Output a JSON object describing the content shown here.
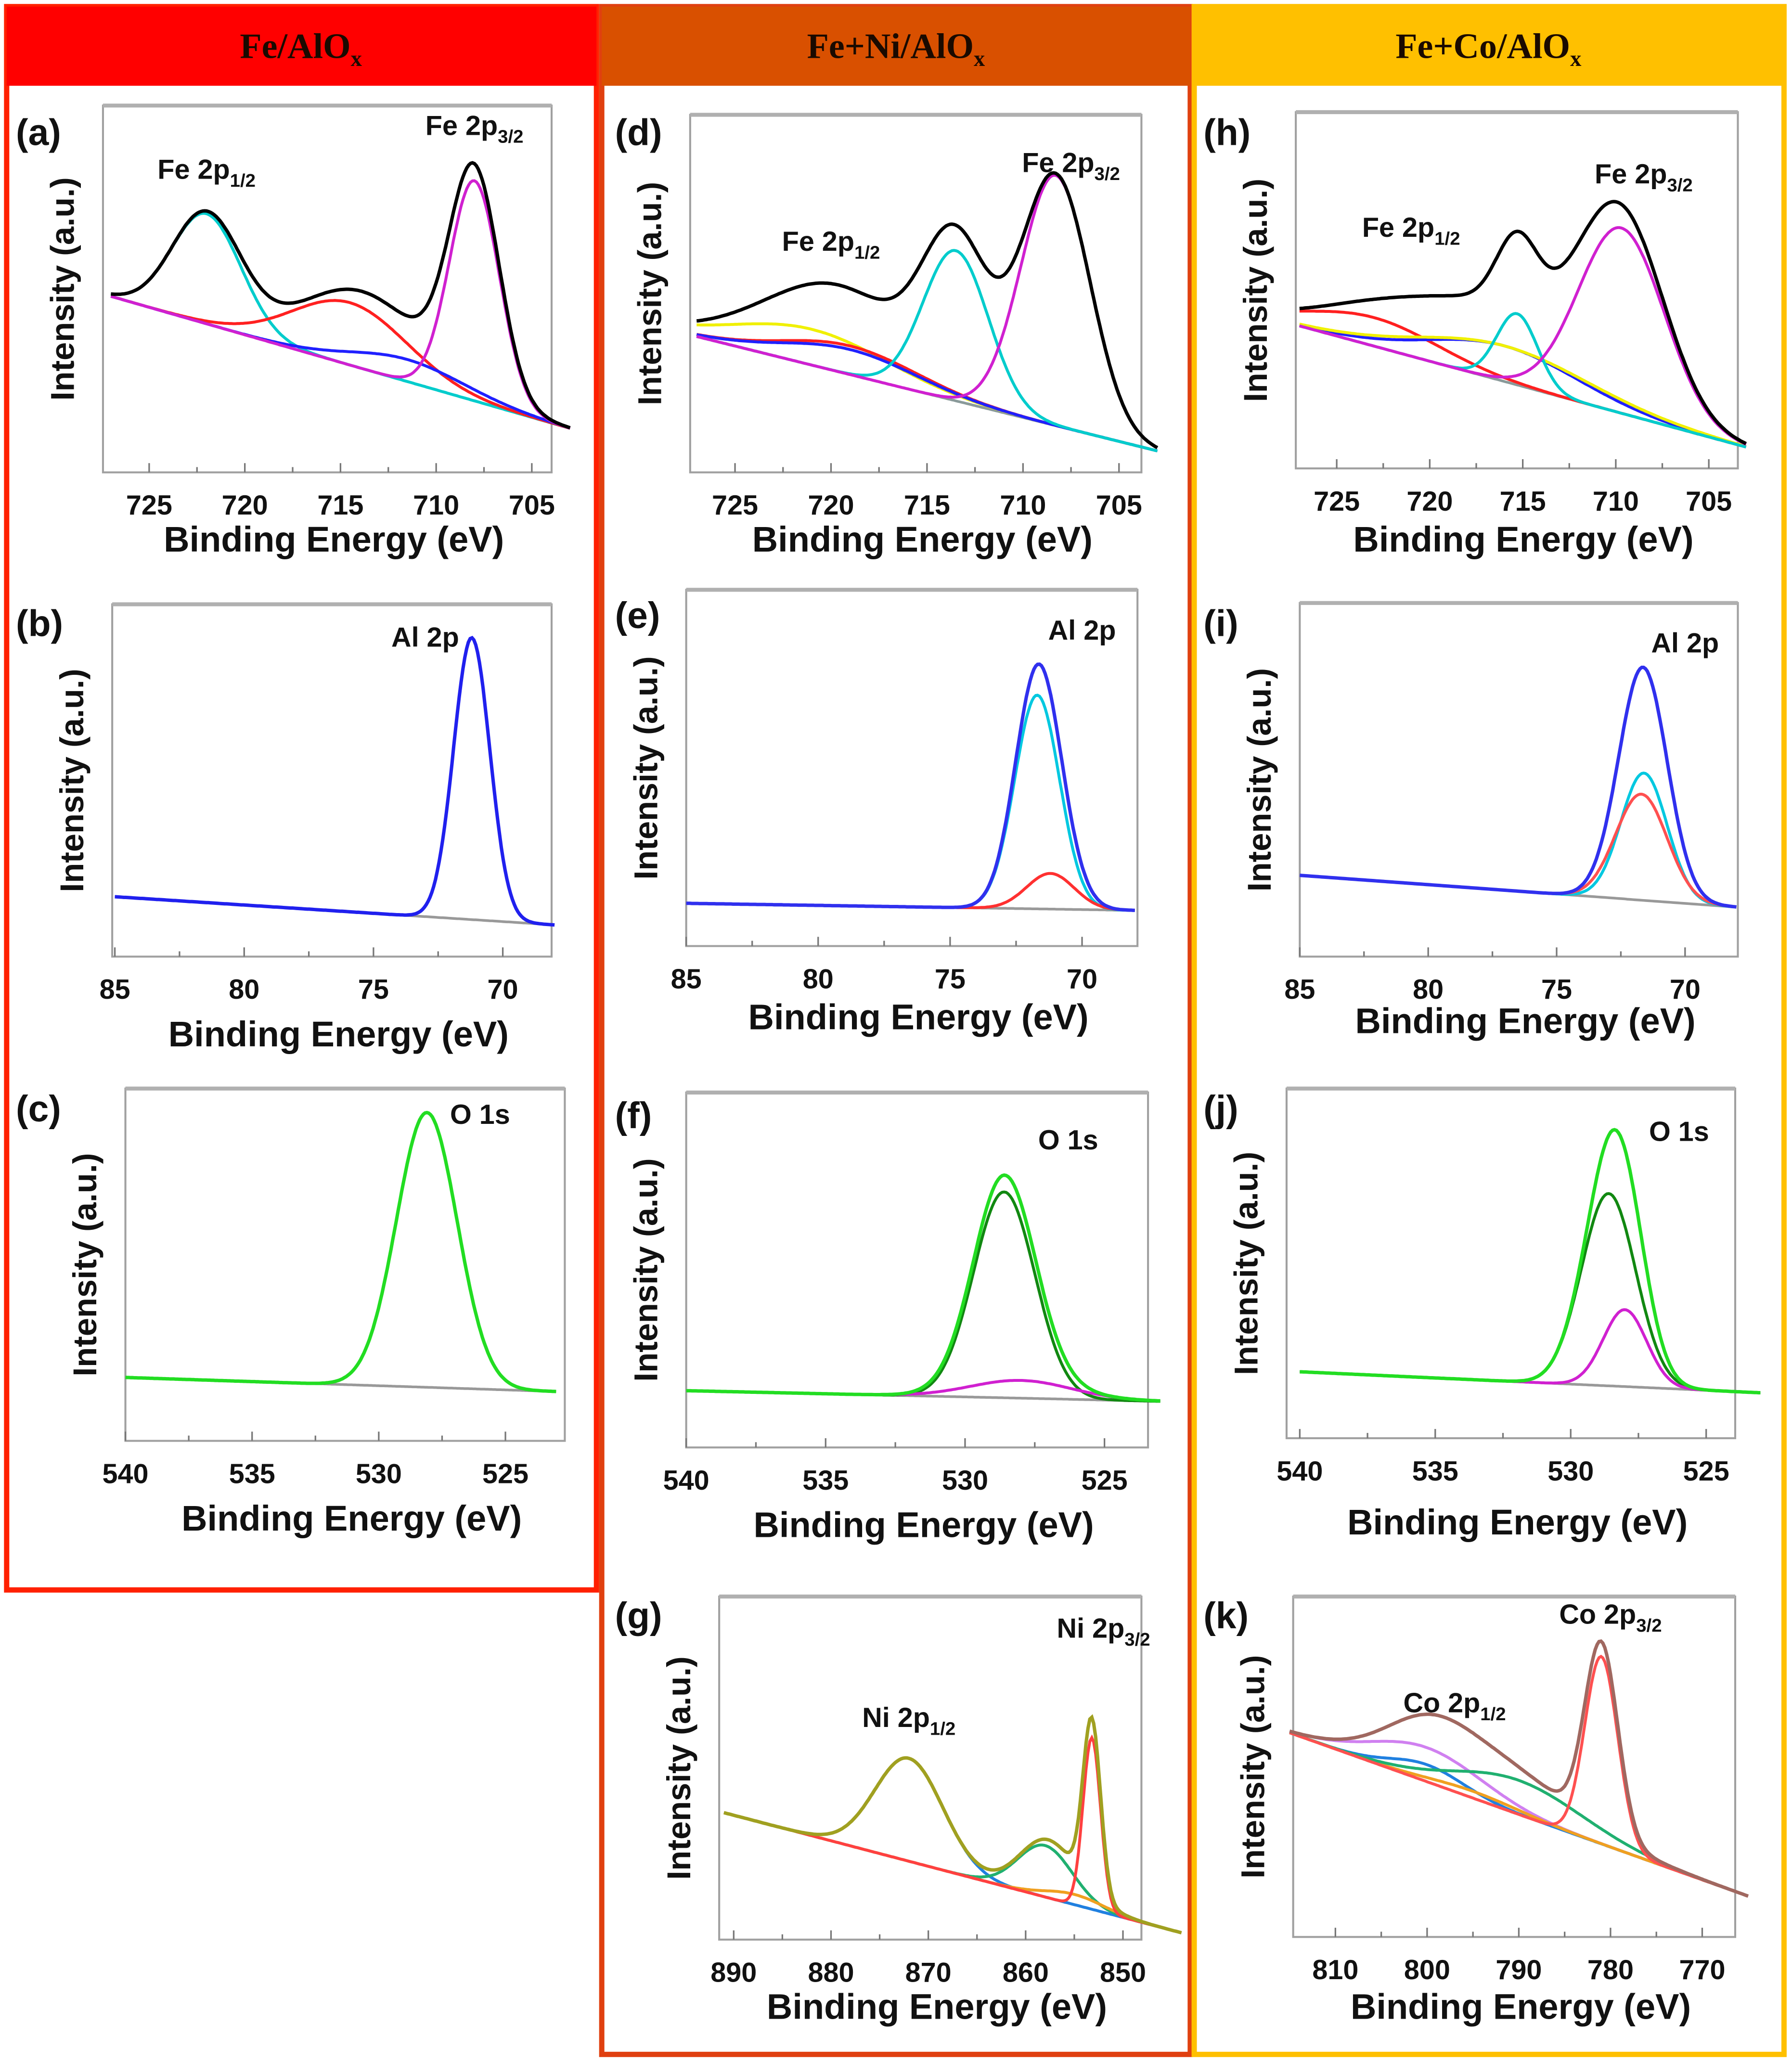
{
  "columns": [
    {
      "title": "Fe/AlO",
      "sub": "x",
      "color": "#ff0000"
    },
    {
      "title": "Fe+Ni/AlO",
      "sub": "x",
      "color": "#d95000"
    },
    {
      "title": "Fe+Co/AlO",
      "sub": "x",
      "color": "#ffc000"
    }
  ],
  "chart_data": [
    {
      "panel": "(a)",
      "type": "line",
      "xlabel": "Binding Energy (eV)",
      "ylabel": "Intensity (a.u.)",
      "xlim": [
        727,
        703
      ],
      "xticks": [
        "725",
        "720",
        "715",
        "710",
        "705"
      ],
      "baseline": [
        0.48,
        0.12
      ],
      "baseline_color": "#8a9a9a",
      "envelope_color": "#000000",
      "components": [
        {
          "color": "#00cccc",
          "center": 722,
          "height": 0.3,
          "sigma": 1.8
        },
        {
          "color": "#ff2020",
          "center": 714.5,
          "height": 0.17,
          "sigma": 3
        },
        {
          "color": "#2020ff",
          "center": 711.5,
          "height": 0.06,
          "sigma": 3
        },
        {
          "color": "#d020d0",
          "center": 708,
          "height": 0.6,
          "sigma": 1.3
        }
      ],
      "annotations": [
        {
          "text": "Fe 2p",
          "sub": "1/2",
          "x": 722,
          "y": 0.8
        },
        {
          "text": "Fe 2p",
          "sub": "3/2",
          "x": 708,
          "y": 0.92
        }
      ]
    },
    {
      "panel": "(b)",
      "type": "line",
      "xlabel": "Binding Energy (eV)",
      "ylabel": "Intensity (a.u.)",
      "xlim": [
        85,
        68
      ],
      "xticks": [
        "85",
        "80",
        "75",
        "70"
      ],
      "baseline": [
        0.17,
        0.09
      ],
      "baseline_color": "#999999",
      "envelope_color": "#2020ee",
      "components": [
        {
          "color": "#2020ee",
          "center": 71.2,
          "height": 0.8,
          "sigma": 0.7
        }
      ],
      "annotations": [
        {
          "text": "Al 2p",
          "sub": "",
          "x": 73,
          "y": 0.88
        }
      ]
    },
    {
      "panel": "(c)",
      "type": "line",
      "xlabel": "Binding Energy (eV)",
      "ylabel": "Intensity (a.u.)",
      "xlim": [
        540,
        523
      ],
      "xticks": [
        "540",
        "535",
        "530",
        "525"
      ],
      "baseline": [
        0.18,
        0.14
      ],
      "baseline_color": "#999999",
      "envelope_color": "#22dd22",
      "components": [
        {
          "color": "#22dd22",
          "center": 528.1,
          "height": 0.78,
          "sigma": 1.2
        }
      ],
      "annotations": [
        {
          "text": "O 1s",
          "sub": "",
          "x": 526,
          "y": 0.9
        }
      ]
    },
    {
      "panel": "(d)",
      "type": "line",
      "xlabel": "Binding Energy (eV)",
      "ylabel": "Intensity (a.u.)",
      "xlim": [
        727,
        703
      ],
      "xticks": [
        "725",
        "720",
        "715",
        "710",
        "705"
      ],
      "baseline": [
        0.38,
        0.06
      ],
      "baseline_color": "#8a9a9a",
      "envelope_color": "#000000",
      "components": [
        {
          "color": "#f0f000",
          "center": 721,
          "height": 0.1,
          "sigma": 4
        },
        {
          "color": "#ff2020",
          "center": 719,
          "height": 0.08,
          "sigma": 3.5
        },
        {
          "color": "#2020ff",
          "center": 719,
          "height": 0.07,
          "sigma": 3.5
        },
        {
          "color": "#00cccc",
          "center": 713.5,
          "height": 0.42,
          "sigma": 1.7
        },
        {
          "color": "#d020d0",
          "center": 708.3,
          "height": 0.7,
          "sigma": 1.8
        }
      ],
      "annotations": [
        {
          "text": "Fe 2p",
          "sub": "1/2",
          "x": 720,
          "y": 0.62
        },
        {
          "text": "Fe 2p",
          "sub": "3/2",
          "x": 707.5,
          "y": 0.84
        }
      ]
    },
    {
      "panel": "(e)",
      "type": "line",
      "xlabel": "Binding Energy (eV)",
      "ylabel": "Intensity (a.u.)",
      "xlim": [
        85,
        68
      ],
      "xticks": [
        "85",
        "80",
        "75",
        "70"
      ],
      "baseline": [
        0.12,
        0.1
      ],
      "baseline_color": "#999999",
      "envelope_color": "#3030ee",
      "components": [
        {
          "color": "#00c8e0",
          "center": 71.7,
          "height": 0.6,
          "sigma": 0.85
        },
        {
          "color": "#ff3030",
          "center": 71.2,
          "height": 0.1,
          "sigma": 0.9
        }
      ],
      "annotations": [
        {
          "text": "Al 2p",
          "sub": "",
          "x": 70,
          "y": 0.86
        }
      ]
    },
    {
      "panel": "(f)",
      "type": "line",
      "xlabel": "Binding Energy (eV)",
      "ylabel": "Intensity (a.u.)",
      "xlim": [
        540,
        523
      ],
      "xticks": [
        "540",
        "535",
        "530",
        "525"
      ],
      "baseline": [
        0.16,
        0.13
      ],
      "baseline_color": "#999999",
      "envelope_color": "#22dd22",
      "components": [
        {
          "color": "#118811",
          "center": 528.6,
          "height": 0.58,
          "sigma": 1.1
        },
        {
          "color": "#d020d0",
          "center": 528,
          "height": 0.05,
          "sigma": 1.8
        }
      ],
      "annotations": [
        {
          "text": "O 1s",
          "sub": "",
          "x": 526.3,
          "y": 0.84
        }
      ]
    },
    {
      "panel": "(g)",
      "type": "line",
      "xlabel": "Binding Energy (eV)",
      "ylabel": "Intensity (a.u.)",
      "xlim": [
        891,
        844
      ],
      "xticks": [
        "890",
        "880",
        "870",
        "860",
        "850"
      ],
      "baseline": [
        0.37,
        0.02
      ],
      "baseline_color": "#a07070",
      "envelope_color": "#a0a020",
      "components": [
        {
          "color": "#2080e0",
          "center": 872,
          "height": 0.3,
          "sigma": 3.5
        },
        {
          "color": "#20b070",
          "center": 858,
          "height": 0.15,
          "sigma": 2.8
        },
        {
          "color": "#f0a020",
          "center": 855,
          "height": 0.03,
          "sigma": 3
        },
        {
          "color": "#ff4040",
          "center": 853.2,
          "height": 0.5,
          "sigma": 0.9
        }
      ],
      "annotations": [
        {
          "text": "Ni 2p",
          "sub": "1/2",
          "x": 872,
          "y": 0.62
        },
        {
          "text": "Ni 2p",
          "sub": "3/2",
          "x": 852,
          "y": 0.88
        }
      ]
    },
    {
      "panel": "(h)",
      "type": "line",
      "xlabel": "Binding Energy (eV)",
      "ylabel": "Intensity (a.u.)",
      "xlim": [
        727,
        703
      ],
      "xticks": [
        "725",
        "720",
        "715",
        "710",
        "705"
      ],
      "baseline": [
        0.4,
        0.06
      ],
      "baseline_color": "#8a9a9a",
      "envelope_color": "#000000",
      "components": [
        {
          "color": "#ff2020",
          "center": 723,
          "height": 0.08,
          "sigma": 3.5
        },
        {
          "color": "#2020ff",
          "center": 716,
          "height": 0.1,
          "sigma": 4
        },
        {
          "color": "#f0f000",
          "center": 716,
          "height": 0.1,
          "sigma": 4.5
        },
        {
          "color": "#00cccc",
          "center": 715.3,
          "height": 0.2,
          "sigma": 1.1
        },
        {
          "color": "#d020d0",
          "center": 709.7,
          "height": 0.52,
          "sigma": 2.3
        }
      ],
      "annotations": [
        {
          "text": "Fe 2p",
          "sub": "1/2",
          "x": 721,
          "y": 0.65
        },
        {
          "text": "Fe 2p",
          "sub": "3/2",
          "x": 708.5,
          "y": 0.8
        }
      ]
    },
    {
      "panel": "(i)",
      "type": "line",
      "xlabel": "Binding Energy (eV)",
      "ylabel": "Intensity (a.u.)",
      "xlim": [
        85,
        68
      ],
      "xticks": [
        "85",
        "80",
        "75",
        "70"
      ],
      "baseline": [
        0.23,
        0.14
      ],
      "baseline_color": "#999999",
      "envelope_color": "#3030ee",
      "components": [
        {
          "color": "#00c8e0",
          "center": 71.6,
          "height": 0.36,
          "sigma": 0.9
        },
        {
          "color": "#ff5050",
          "center": 71.7,
          "height": 0.3,
          "sigma": 1.0
        }
      ],
      "annotations": [
        {
          "text": "Al 2p",
          "sub": "",
          "x": 70,
          "y": 0.86
        }
      ]
    },
    {
      "panel": "(j)",
      "type": "line",
      "xlabel": "Binding Energy (eV)",
      "ylabel": "Intensity (a.u.)",
      "xlim": [
        540,
        523
      ],
      "xticks": [
        "540",
        "535",
        "530",
        "525"
      ],
      "baseline": [
        0.19,
        0.13
      ],
      "baseline_color": "#999999",
      "envelope_color": "#22dd22",
      "components": [
        {
          "color": "#118811",
          "center": 528.6,
          "height": 0.55,
          "sigma": 1.0
        },
        {
          "color": "#d020d0",
          "center": 528,
          "height": 0.22,
          "sigma": 0.8
        }
      ],
      "annotations": [
        {
          "text": "O 1s",
          "sub": "",
          "x": 526,
          "y": 0.85
        }
      ]
    },
    {
      "panel": "(k)",
      "type": "line",
      "xlabel": "Binding Energy (eV)",
      "ylabel": "Intensity (a.u.)",
      "xlim": [
        815,
        765
      ],
      "xticks": [
        "810",
        "800",
        "790",
        "780",
        "770"
      ],
      "baseline": [
        0.6,
        0.12
      ],
      "baseline_color": "#20c8c8",
      "envelope_color": "#a06860",
      "components": [
        {
          "color": "#d080f0",
          "center": 800,
          "height": 0.1,
          "sigma": 6
        },
        {
          "color": "#2080e0",
          "center": 800,
          "height": 0.05,
          "sigma": 4
        },
        {
          "color": "#f0a020",
          "center": 795,
          "height": 0.02,
          "sigma": 5
        },
        {
          "color": "#20b070",
          "center": 790,
          "height": 0.1,
          "sigma": 7
        },
        {
          "color": "#ff5050",
          "center": 781,
          "height": 0.55,
          "sigma": 1.8
        }
      ],
      "annotations": [
        {
          "text": "Co 2p",
          "sub": "1/2",
          "x": 797,
          "y": 0.66
        },
        {
          "text": "Co 2p",
          "sub": "3/2",
          "x": 780,
          "y": 0.92
        }
      ]
    }
  ]
}
